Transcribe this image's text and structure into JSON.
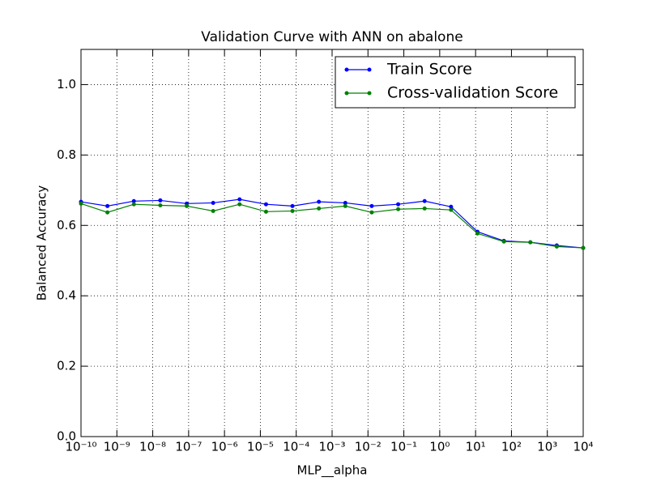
{
  "chart_data": {
    "type": "line",
    "title": "Validation Curve with ANN on abalone",
    "x_label": "MLP__alpha",
    "y_label": "Balanced Accuracy",
    "x": [
      1e-10,
      5.456e-10,
      2.976e-09,
      1.624e-08,
      8.859e-08,
      4.833e-07,
      2.637e-06,
      1.438e-05,
      7.848e-05,
      0.0004281,
      0.002336,
      0.01274,
      0.06952,
      0.3793,
      2.069,
      11.29,
      61.58,
      336.0,
      1833,
      10000
    ],
    "series": [
      {
        "name": "Train Score",
        "color": "#0000ff",
        "values": [
          0.667,
          0.655,
          0.669,
          0.671,
          0.662,
          0.664,
          0.674,
          0.66,
          0.655,
          0.667,
          0.664,
          0.655,
          0.66,
          0.669,
          0.653,
          0.582,
          0.556,
          0.552,
          0.543,
          0.536
        ]
      },
      {
        "name": "Cross-validation Score",
        "color": "#008000",
        "values": [
          0.662,
          0.637,
          0.66,
          0.657,
          0.655,
          0.641,
          0.66,
          0.639,
          0.641,
          0.648,
          0.655,
          0.637,
          0.646,
          0.648,
          0.644,
          0.577,
          0.554,
          0.552,
          0.54,
          0.536
        ]
      }
    ],
    "xscale": "log",
    "xlim": [
      1e-10,
      10000
    ],
    "xticks": [
      {
        "value": 1e-10,
        "label": "10⁻¹⁰"
      },
      {
        "value": 1e-09,
        "label": "10⁻⁹"
      },
      {
        "value": 1e-08,
        "label": "10⁻⁸"
      },
      {
        "value": 1e-07,
        "label": "10⁻⁷"
      },
      {
        "value": 1e-06,
        "label": "10⁻⁶"
      },
      {
        "value": 1e-05,
        "label": "10⁻⁵"
      },
      {
        "value": 0.0001,
        "label": "10⁻⁴"
      },
      {
        "value": 0.001,
        "label": "10⁻³"
      },
      {
        "value": 0.01,
        "label": "10⁻²"
      },
      {
        "value": 0.1,
        "label": "10⁻¹"
      },
      {
        "value": 1,
        "label": "10⁰"
      },
      {
        "value": 10,
        "label": "10¹"
      },
      {
        "value": 100,
        "label": "10²"
      },
      {
        "value": 1000,
        "label": "10³"
      },
      {
        "value": 10000,
        "label": "10⁴"
      }
    ],
    "ylim": [
      0,
      1.1
    ],
    "yticks": [
      {
        "value": 0,
        "label": "0.0"
      },
      0.2,
      0.4,
      0.6,
      0.8,
      {
        "value": 1,
        "label": "1.0"
      }
    ],
    "grid": true,
    "legend": "upper right"
  }
}
